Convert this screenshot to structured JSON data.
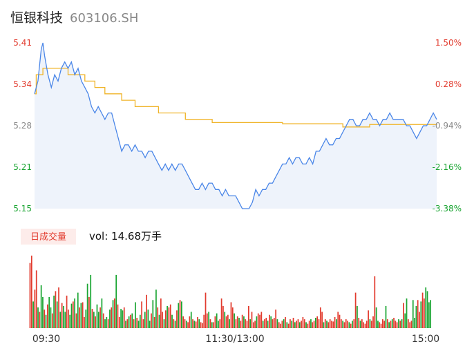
{
  "header": {
    "stock_name": "恒银科技",
    "stock_code": "603106.SH"
  },
  "volume_panel": {
    "badge": "日成交量",
    "vol_label": "vol: 14.68万手"
  },
  "colors": {
    "up": "#e23b2e",
    "down": "#1aa532",
    "neutral": "#888888",
    "price_line": "#4a86e8",
    "avg_line": "#f0b429",
    "area_fill": "#eef3fb"
  },
  "chart_data": [
    {
      "type": "line",
      "name": "intraday-price",
      "prev_close": 5.33,
      "ylim": [
        5.15,
        5.41
      ],
      "price_ticks": [
        "5.41",
        "5.34",
        "5.28",
        "5.21",
        "5.15"
      ],
      "pct_ticks": [
        "1.50%",
        "0.28%",
        "-0.94%",
        "-2.16%",
        "-3.38%"
      ],
      "x_labels": [
        "09:30",
        "11:30/13:00",
        "15:00"
      ],
      "total_minutes": 240,
      "price": [
        [
          0,
          5.33
        ],
        [
          2,
          5.35
        ],
        [
          4,
          5.4
        ],
        [
          5,
          5.41
        ],
        [
          6,
          5.39
        ],
        [
          8,
          5.36
        ],
        [
          10,
          5.34
        ],
        [
          12,
          5.36
        ],
        [
          14,
          5.35
        ],
        [
          16,
          5.37
        ],
        [
          18,
          5.38
        ],
        [
          20,
          5.37
        ],
        [
          22,
          5.38
        ],
        [
          24,
          5.36
        ],
        [
          26,
          5.37
        ],
        [
          28,
          5.35
        ],
        [
          30,
          5.34
        ],
        [
          32,
          5.33
        ],
        [
          34,
          5.31
        ],
        [
          36,
          5.3
        ],
        [
          38,
          5.31
        ],
        [
          40,
          5.3
        ],
        [
          42,
          5.29
        ],
        [
          44,
          5.3
        ],
        [
          46,
          5.3
        ],
        [
          48,
          5.28
        ],
        [
          50,
          5.26
        ],
        [
          52,
          5.24
        ],
        [
          54,
          5.25
        ],
        [
          56,
          5.25
        ],
        [
          58,
          5.24
        ],
        [
          60,
          5.25
        ],
        [
          62,
          5.24
        ],
        [
          64,
          5.24
        ],
        [
          66,
          5.23
        ],
        [
          68,
          5.24
        ],
        [
          70,
          5.24
        ],
        [
          72,
          5.23
        ],
        [
          74,
          5.22
        ],
        [
          76,
          5.21
        ],
        [
          78,
          5.22
        ],
        [
          80,
          5.21
        ],
        [
          82,
          5.22
        ],
        [
          84,
          5.21
        ],
        [
          86,
          5.22
        ],
        [
          88,
          5.22
        ],
        [
          90,
          5.21
        ],
        [
          92,
          5.2
        ],
        [
          94,
          5.19
        ],
        [
          96,
          5.18
        ],
        [
          98,
          5.18
        ],
        [
          100,
          5.19
        ],
        [
          102,
          5.18
        ],
        [
          104,
          5.19
        ],
        [
          106,
          5.19
        ],
        [
          108,
          5.18
        ],
        [
          110,
          5.18
        ],
        [
          112,
          5.17
        ],
        [
          114,
          5.18
        ],
        [
          116,
          5.17
        ],
        [
          118,
          5.17
        ],
        [
          120,
          5.17
        ],
        [
          122,
          5.16
        ],
        [
          124,
          5.15
        ],
        [
          126,
          5.15
        ],
        [
          128,
          5.15
        ],
        [
          130,
          5.16
        ],
        [
          132,
          5.18
        ],
        [
          134,
          5.17
        ],
        [
          136,
          5.18
        ],
        [
          138,
          5.18
        ],
        [
          140,
          5.19
        ],
        [
          142,
          5.19
        ],
        [
          144,
          5.2
        ],
        [
          146,
          5.21
        ],
        [
          148,
          5.22
        ],
        [
          150,
          5.22
        ],
        [
          152,
          5.23
        ],
        [
          154,
          5.22
        ],
        [
          156,
          5.23
        ],
        [
          158,
          5.23
        ],
        [
          160,
          5.22
        ],
        [
          162,
          5.22
        ],
        [
          164,
          5.23
        ],
        [
          166,
          5.22
        ],
        [
          168,
          5.24
        ],
        [
          170,
          5.24
        ],
        [
          172,
          5.25
        ],
        [
          174,
          5.26
        ],
        [
          176,
          5.25
        ],
        [
          178,
          5.25
        ],
        [
          180,
          5.26
        ],
        [
          182,
          5.26
        ],
        [
          184,
          5.27
        ],
        [
          186,
          5.28
        ],
        [
          188,
          5.29
        ],
        [
          190,
          5.29
        ],
        [
          192,
          5.28
        ],
        [
          194,
          5.28
        ],
        [
          196,
          5.29
        ],
        [
          198,
          5.29
        ],
        [
          200,
          5.3
        ],
        [
          202,
          5.29
        ],
        [
          204,
          5.29
        ],
        [
          206,
          5.28
        ],
        [
          208,
          5.29
        ],
        [
          210,
          5.29
        ],
        [
          212,
          5.3
        ],
        [
          214,
          5.29
        ],
        [
          216,
          5.29
        ],
        [
          218,
          5.29
        ],
        [
          220,
          5.29
        ],
        [
          222,
          5.28
        ],
        [
          224,
          5.28
        ],
        [
          226,
          5.27
        ],
        [
          228,
          5.26
        ],
        [
          230,
          5.27
        ],
        [
          232,
          5.28
        ],
        [
          234,
          5.28
        ],
        [
          236,
          5.29
        ],
        [
          238,
          5.3
        ],
        [
          240,
          5.29
        ]
      ],
      "avg_price": [
        [
          0,
          5.33
        ],
        [
          1,
          5.36
        ],
        [
          5,
          5.37
        ],
        [
          20,
          5.36
        ],
        [
          30,
          5.35
        ],
        [
          36,
          5.34
        ],
        [
          42,
          5.33
        ],
        [
          52,
          5.32
        ],
        [
          60,
          5.31
        ],
        [
          74,
          5.3
        ],
        [
          90,
          5.29
        ],
        [
          106,
          5.285
        ],
        [
          148,
          5.283
        ],
        [
          184,
          5.278
        ],
        [
          200,
          5.282
        ],
        [
          240,
          5.283
        ]
      ]
    },
    {
      "type": "bar",
      "name": "volume",
      "values": [
        88,
        98,
        36,
        52,
        78,
        28,
        22,
        58,
        42,
        25,
        18,
        32,
        42,
        28,
        20,
        44,
        50,
        36,
        55,
        22,
        34,
        30,
        22,
        44,
        25,
        18,
        33,
        36,
        40,
        20,
        48,
        28,
        34,
        35,
        15,
        25,
        60,
        42,
        72,
        26,
        22,
        16,
        32,
        22,
        28,
        40,
        20,
        12,
        15,
        12,
        25,
        28,
        38,
        40,
        72,
        32,
        15,
        26,
        24,
        28,
        10,
        12,
        16,
        18,
        20,
        12,
        35,
        14,
        10,
        18,
        36,
        12,
        22,
        45,
        25,
        10,
        20,
        38,
        15,
        52,
        28,
        18,
        40,
        22,
        12,
        24,
        30,
        28,
        32,
        18,
        12,
        10,
        24,
        34,
        38,
        36,
        16,
        12,
        10,
        8,
        16,
        22,
        12,
        10,
        9,
        15,
        12,
        8,
        7,
        18,
        48,
        20,
        22,
        12,
        8,
        8,
        16,
        20,
        10,
        12,
        40,
        30,
        22,
        16,
        18,
        12,
        35,
        28,
        20,
        12,
        16,
        14,
        10,
        18,
        16,
        12,
        10,
        30,
        12,
        22,
        8,
        10,
        16,
        20,
        18,
        22,
        10,
        12,
        14,
        10,
        18,
        16,
        12,
        14,
        25,
        12,
        8,
        6,
        10,
        12,
        15,
        8,
        6,
        12,
        10,
        14,
        8,
        10,
        12,
        8,
        10,
        15,
        12,
        8,
        6,
        10,
        12,
        8,
        10,
        14,
        16,
        12,
        28,
        22,
        8,
        12,
        10,
        8,
        12,
        10,
        9,
        15,
        12,
        22,
        18,
        12,
        10,
        8,
        12,
        10,
        8,
        6,
        10,
        12,
        48,
        30,
        14,
        10,
        12,
        8,
        6,
        10,
        24,
        12,
        10,
        16,
        70,
        28,
        10,
        8,
        6,
        12,
        10,
        30,
        12,
        8,
        10,
        12,
        14,
        10,
        8,
        12,
        10,
        12,
        34,
        20,
        40,
        12,
        8,
        10,
        38,
        14,
        30,
        38,
        22,
        36,
        48,
        40,
        55,
        50,
        35,
        38
      ],
      "directions": [
        "up",
        "up",
        "down",
        "up",
        "up",
        "down",
        "up",
        "down",
        "down",
        "up",
        "down",
        "up",
        "down",
        "down",
        "up",
        "down",
        "up",
        "down",
        "up",
        "down",
        "up",
        "down",
        "down",
        "up",
        "up",
        "down",
        "down",
        "up",
        "down",
        "up",
        "down",
        "up",
        "down",
        "up",
        "up",
        "down",
        "down",
        "up",
        "down",
        "up",
        "down",
        "up",
        "down",
        "down",
        "up",
        "down",
        "up",
        "down",
        "down",
        "up",
        "down",
        "up",
        "down",
        "up",
        "down",
        "up",
        "up",
        "down",
        "down",
        "up",
        "down",
        "up",
        "down",
        "up",
        "down",
        "up",
        "down",
        "up",
        "down",
        "down",
        "up",
        "up",
        "down",
        "up",
        "down",
        "down",
        "up",
        "down",
        "up",
        "down",
        "up",
        "down",
        "up",
        "up",
        "down",
        "up",
        "down",
        "up",
        "up",
        "down",
        "up",
        "down",
        "up",
        "down",
        "up",
        "down",
        "up",
        "up",
        "down",
        "up",
        "up",
        "down",
        "up",
        "down",
        "up",
        "up",
        "down",
        "up",
        "up",
        "up",
        "up",
        "up",
        "down",
        "up",
        "down",
        "up",
        "up",
        "down",
        "down",
        "up",
        "up",
        "up",
        "down",
        "up",
        "up",
        "down",
        "up",
        "up",
        "down",
        "up",
        "up",
        "down",
        "up",
        "up",
        "down",
        "up",
        "up",
        "up",
        "down",
        "up",
        "up",
        "up",
        "down",
        "up",
        "up",
        "up",
        "down",
        "up",
        "up",
        "down",
        "up",
        "down",
        "up",
        "up",
        "up",
        "down",
        "up",
        "up",
        "up",
        "down",
        "up",
        "down",
        "up",
        "up",
        "down",
        "up",
        "down",
        "up",
        "up",
        "down",
        "up",
        "up",
        "up",
        "down",
        "up",
        "up",
        "down",
        "up",
        "up",
        "down",
        "up",
        "up",
        "up",
        "up",
        "down",
        "up",
        "down",
        "up",
        "up",
        "up",
        "up",
        "up",
        "down",
        "up",
        "up",
        "up",
        "down",
        "up",
        "up",
        "up",
        "down",
        "up",
        "down",
        "up",
        "up",
        "down",
        "up",
        "down",
        "up",
        "up",
        "up",
        "up",
        "up",
        "down",
        "up",
        "up",
        "up",
        "down",
        "down",
        "up",
        "up",
        "up",
        "up",
        "down",
        "up",
        "down",
        "up",
        "down",
        "up",
        "up",
        "up",
        "down",
        "up",
        "down",
        "up",
        "down",
        "down",
        "up",
        "up",
        "up",
        "down",
        "down",
        "down",
        "up",
        "up",
        "down",
        "up",
        "up"
      ]
    }
  ]
}
